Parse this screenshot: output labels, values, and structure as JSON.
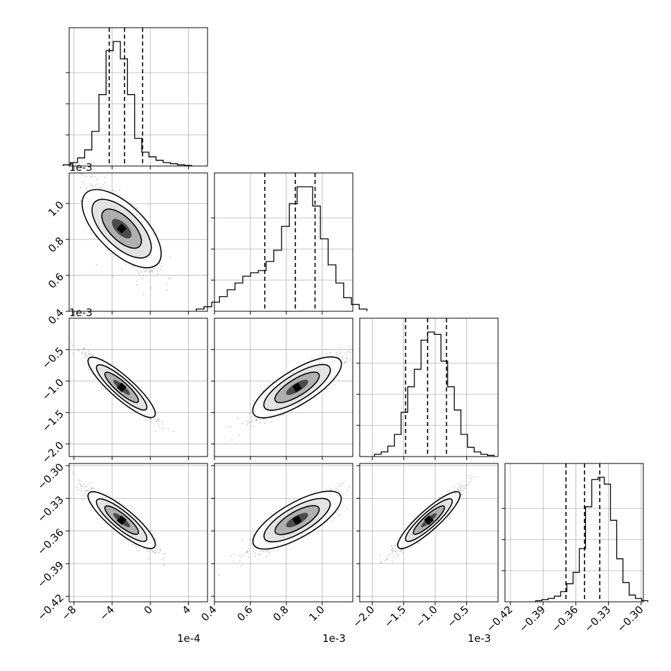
{
  "chart_data": {
    "type": "corner",
    "parameters": 4,
    "x_offsets": [
      "1e-4",
      "1e-3",
      "1e-3",
      ""
    ],
    "y_offsets": [
      "",
      "1e-3",
      "1e-3",
      ""
    ],
    "axes": [
      {
        "range": [
          -8.5,
          6.0
        ],
        "ticks": [
          -8,
          -4,
          0,
          4
        ],
        "tick_labels": [
          "−8",
          "−4",
          "0",
          "4"
        ]
      },
      {
        "range": [
          0.4,
          1.17
        ],
        "ticks": [
          0.4,
          0.6,
          0.8,
          1.0
        ],
        "tick_labels": [
          "0.4",
          "0.6",
          "0.8",
          "1.0"
        ]
      },
      {
        "range": [
          -2.2,
          -0.0
        ],
        "ticks": [
          -2.0,
          -1.5,
          -1.0,
          -0.5
        ],
        "tick_labels": [
          "−2.0",
          "−1.5",
          "−1.0",
          "−0.5"
        ]
      },
      {
        "range": [
          -0.425,
          -0.298
        ],
        "ticks": [
          -0.42,
          -0.39,
          -0.36,
          -0.33,
          -0.3
        ],
        "tick_labels": [
          "−0.42",
          "−0.39",
          "−0.36",
          "−0.33",
          "−0.30"
        ]
      }
    ],
    "quantiles": [
      [
        -4.3,
        -2.7,
        -0.8
      ],
      [
        0.68,
        0.85,
        0.96
      ],
      [
        -1.47,
        -1.12,
        -0.82
      ],
      [
        -0.369,
        -0.352,
        -0.338
      ]
    ],
    "histograms": [
      [
        1,
        3,
        7,
        14,
        30,
        62,
        100,
        108,
        93,
        62,
        24,
        12,
        8,
        5,
        3,
        2,
        1,
        0.5
      ],
      [
        2,
        4,
        8,
        13,
        19,
        25,
        31,
        34,
        36,
        44,
        54,
        75,
        95,
        110,
        110,
        93,
        64,
        41,
        25,
        12,
        6,
        2
      ],
      [
        2,
        4,
        9,
        19,
        38,
        60,
        75,
        100,
        107,
        105,
        82,
        60,
        40,
        19,
        8,
        4,
        2,
        1
      ],
      [
        1,
        2,
        3,
        5,
        9,
        16,
        26,
        47,
        84,
        108,
        110,
        104,
        72,
        38,
        17,
        6,
        3,
        1
      ]
    ],
    "means": [
      -3.0,
      0.86,
      -1.1,
      -0.35
    ],
    "stds": [
      1.7,
      0.12,
      0.24,
      0.013
    ],
    "correlations": [
      [
        1.0,
        -0.74,
        -0.95,
        -0.94
      ],
      [
        -0.74,
        1.0,
        0.88,
        0.87
      ],
      [
        -0.95,
        0.88,
        1.0,
        0.96
      ],
      [
        -0.94,
        0.87,
        0.96,
        1.0
      ]
    ],
    "grid": true,
    "line_color": "#000000",
    "point_color": "#9e9e9e"
  }
}
